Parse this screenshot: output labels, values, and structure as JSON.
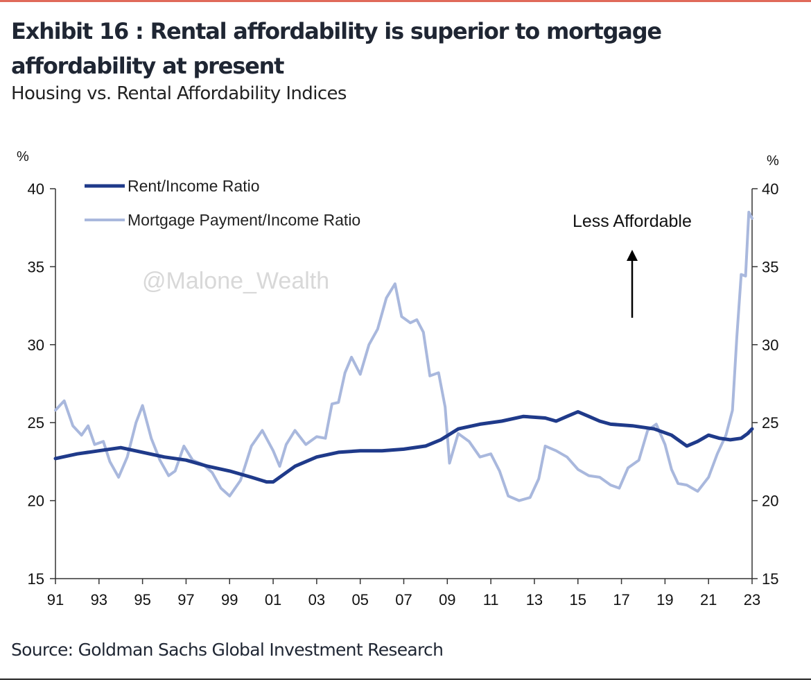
{
  "header": {
    "title": "Exhibit 16 : Rental affordability is superior to mortgage affordability at present",
    "subtitle": "Housing vs. Rental Affordability Indices"
  },
  "footer": {
    "source": "Source: Goldman Sachs Global Investment Research"
  },
  "watermark": "@Malone_Wealth",
  "chart_data": {
    "type": "line",
    "title": "Housing vs. Rental Affordability Indices",
    "xlabel": "",
    "ylabel": "%",
    "ylabel_right": "%",
    "x_range": [
      1991,
      2023
    ],
    "ylim": [
      15,
      40
    ],
    "y_ticks": [
      15,
      20,
      25,
      30,
      35,
      40
    ],
    "x_ticks": [
      {
        "value": 1991,
        "label": "91"
      },
      {
        "value": 1993,
        "label": "93"
      },
      {
        "value": 1995,
        "label": "95"
      },
      {
        "value": 1997,
        "label": "97"
      },
      {
        "value": 1999,
        "label": "99"
      },
      {
        "value": 2001,
        "label": "01"
      },
      {
        "value": 2003,
        "label": "03"
      },
      {
        "value": 2005,
        "label": "05"
      },
      {
        "value": 2007,
        "label": "07"
      },
      {
        "value": 2009,
        "label": "09"
      },
      {
        "value": 2011,
        "label": "11"
      },
      {
        "value": 2013,
        "label": "13"
      },
      {
        "value": 2015,
        "label": "15"
      },
      {
        "value": 2017,
        "label": "17"
      },
      {
        "value": 2019,
        "label": "19"
      },
      {
        "value": 2021,
        "label": "21"
      },
      {
        "value": 2023,
        "label": "23"
      }
    ],
    "annotation": "Less Affordable",
    "legend_position": "top-left",
    "series": [
      {
        "name": "Rent/Income Ratio",
        "color": "#1f3a8a",
        "points": [
          [
            1991.0,
            22.7
          ],
          [
            1992.0,
            23.0
          ],
          [
            1993.0,
            23.2
          ],
          [
            1994.0,
            23.4
          ],
          [
            1995.0,
            23.1
          ],
          [
            1996.0,
            22.8
          ],
          [
            1997.0,
            22.6
          ],
          [
            1998.0,
            22.2
          ],
          [
            1999.0,
            21.9
          ],
          [
            2000.0,
            21.5
          ],
          [
            2000.7,
            21.2
          ],
          [
            2001.0,
            21.2
          ],
          [
            2002.0,
            22.2
          ],
          [
            2003.0,
            22.8
          ],
          [
            2004.0,
            23.1
          ],
          [
            2005.0,
            23.2
          ],
          [
            2006.0,
            23.2
          ],
          [
            2007.0,
            23.3
          ],
          [
            2008.0,
            23.5
          ],
          [
            2008.7,
            23.9
          ],
          [
            2009.5,
            24.6
          ],
          [
            2010.5,
            24.9
          ],
          [
            2011.5,
            25.1
          ],
          [
            2012.5,
            25.4
          ],
          [
            2013.5,
            25.3
          ],
          [
            2014.0,
            25.1
          ],
          [
            2014.5,
            25.4
          ],
          [
            2015.0,
            25.7
          ],
          [
            2015.5,
            25.4
          ],
          [
            2016.0,
            25.1
          ],
          [
            2016.5,
            24.9
          ],
          [
            2017.5,
            24.8
          ],
          [
            2018.5,
            24.6
          ],
          [
            2019.3,
            24.2
          ],
          [
            2020.0,
            23.5
          ],
          [
            2020.5,
            23.8
          ],
          [
            2021.0,
            24.2
          ],
          [
            2021.5,
            24.0
          ],
          [
            2022.0,
            23.9
          ],
          [
            2022.5,
            24.0
          ],
          [
            2022.8,
            24.3
          ],
          [
            2023.0,
            24.6
          ]
        ]
      },
      {
        "name": "Mortgage Payment/Income Ratio",
        "color": "#a9b8dd",
        "points": [
          [
            1991.0,
            25.8
          ],
          [
            1991.4,
            26.4
          ],
          [
            1991.8,
            24.8
          ],
          [
            1992.2,
            24.2
          ],
          [
            1992.5,
            24.8
          ],
          [
            1992.8,
            23.6
          ],
          [
            1993.2,
            23.8
          ],
          [
            1993.5,
            22.5
          ],
          [
            1993.9,
            21.5
          ],
          [
            1994.3,
            22.8
          ],
          [
            1994.7,
            25.0
          ],
          [
            1995.0,
            26.1
          ],
          [
            1995.4,
            24.0
          ],
          [
            1995.8,
            22.6
          ],
          [
            1996.2,
            21.6
          ],
          [
            1996.5,
            21.9
          ],
          [
            1996.9,
            23.5
          ],
          [
            1997.3,
            22.6
          ],
          [
            1997.8,
            22.3
          ],
          [
            1998.2,
            21.8
          ],
          [
            1998.6,
            20.8
          ],
          [
            1999.0,
            20.3
          ],
          [
            1999.5,
            21.3
          ],
          [
            2000.0,
            23.5
          ],
          [
            2000.5,
            24.5
          ],
          [
            2001.0,
            23.2
          ],
          [
            2001.3,
            22.2
          ],
          [
            2001.6,
            23.6
          ],
          [
            2002.0,
            24.5
          ],
          [
            2002.5,
            23.6
          ],
          [
            2003.0,
            24.1
          ],
          [
            2003.4,
            24.0
          ],
          [
            2003.7,
            26.2
          ],
          [
            2004.0,
            26.3
          ],
          [
            2004.3,
            28.2
          ],
          [
            2004.6,
            29.2
          ],
          [
            2005.0,
            28.1
          ],
          [
            2005.4,
            30.0
          ],
          [
            2005.8,
            31.0
          ],
          [
            2006.2,
            33.0
          ],
          [
            2006.6,
            33.9
          ],
          [
            2006.9,
            31.8
          ],
          [
            2007.3,
            31.4
          ],
          [
            2007.6,
            31.6
          ],
          [
            2007.9,
            30.8
          ],
          [
            2008.2,
            28.0
          ],
          [
            2008.6,
            28.2
          ],
          [
            2008.9,
            26.0
          ],
          [
            2009.1,
            22.4
          ],
          [
            2009.5,
            24.3
          ],
          [
            2010.0,
            23.8
          ],
          [
            2010.5,
            22.8
          ],
          [
            2011.0,
            23.0
          ],
          [
            2011.4,
            21.9
          ],
          [
            2011.8,
            20.3
          ],
          [
            2012.3,
            20.0
          ],
          [
            2012.8,
            20.2
          ],
          [
            2013.2,
            21.4
          ],
          [
            2013.5,
            23.5
          ],
          [
            2014.0,
            23.2
          ],
          [
            2014.5,
            22.8
          ],
          [
            2015.0,
            22.0
          ],
          [
            2015.5,
            21.6
          ],
          [
            2016.0,
            21.5
          ],
          [
            2016.5,
            21.0
          ],
          [
            2016.9,
            20.8
          ],
          [
            2017.3,
            22.1
          ],
          [
            2017.8,
            22.6
          ],
          [
            2018.2,
            24.5
          ],
          [
            2018.6,
            24.9
          ],
          [
            2019.0,
            23.6
          ],
          [
            2019.3,
            22.0
          ],
          [
            2019.6,
            21.1
          ],
          [
            2020.0,
            21.0
          ],
          [
            2020.5,
            20.6
          ],
          [
            2021.0,
            21.5
          ],
          [
            2021.4,
            23.0
          ],
          [
            2021.8,
            24.2
          ],
          [
            2022.1,
            25.8
          ],
          [
            2022.3,
            30.5
          ],
          [
            2022.5,
            34.5
          ],
          [
            2022.7,
            34.4
          ],
          [
            2022.85,
            38.5
          ],
          [
            2023.0,
            38.1
          ]
        ]
      }
    ]
  }
}
